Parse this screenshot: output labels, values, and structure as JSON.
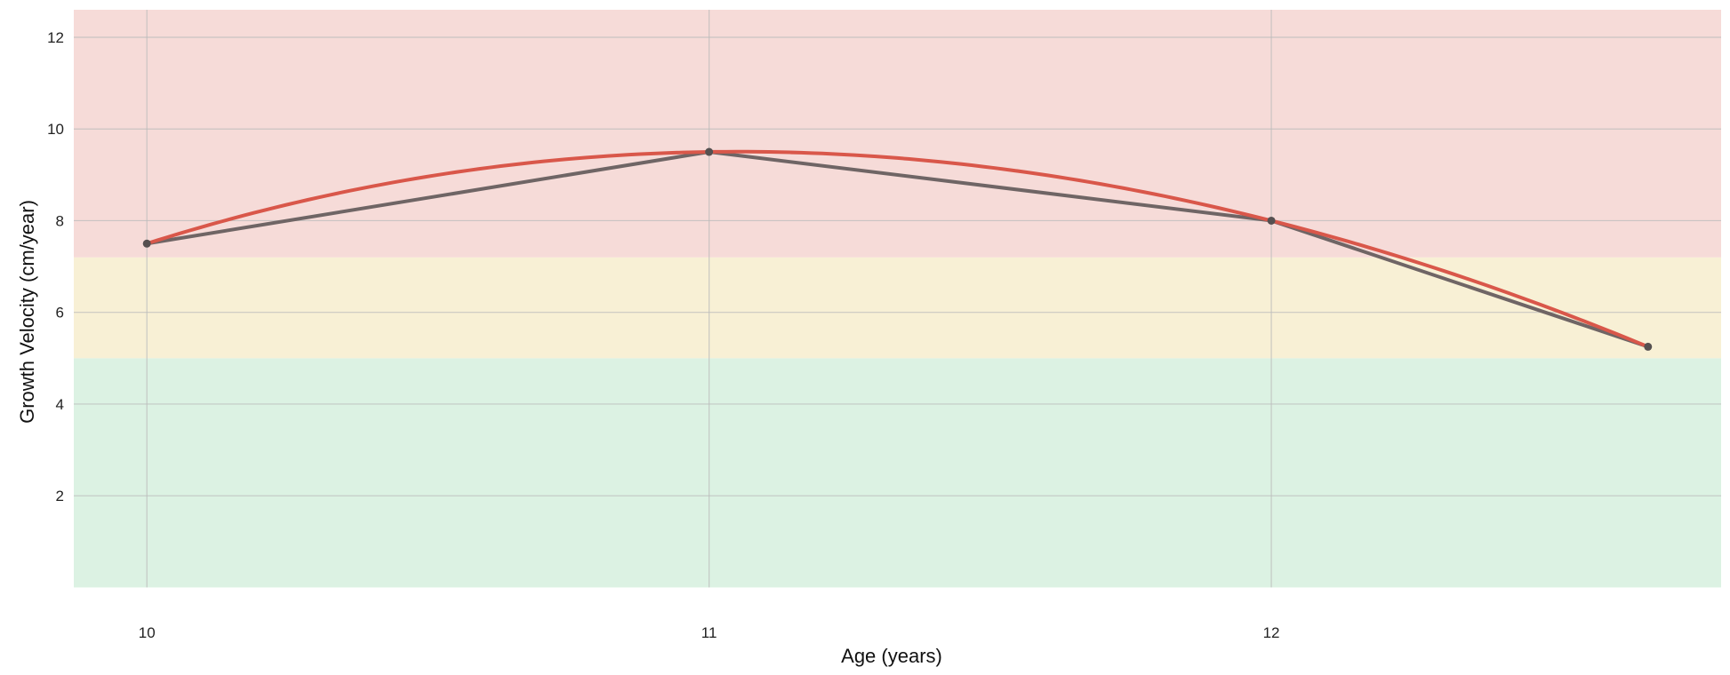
{
  "chart_data": {
    "type": "line",
    "title": "",
    "xlabel": "Age (years)",
    "ylabel": "Growth Velocity (cm/year)",
    "xlim": [
      9.87,
      12.8
    ],
    "ylim": [
      -0.05,
      12.6
    ],
    "x_ticks": [
      10,
      11,
      12
    ],
    "y_ticks": [
      2,
      4,
      6,
      8,
      10,
      12
    ],
    "grid": true,
    "bands": [
      {
        "from": 0,
        "to": 5.0,
        "color": "#dcf2e3"
      },
      {
        "from": 5.0,
        "to": 7.2,
        "color": "#f8f0d5"
      },
      {
        "from": 7.2,
        "to": 12.6,
        "color": "#f6dbd8"
      }
    ],
    "series": [
      {
        "kind": "observed",
        "color": "#6f6565",
        "x": [
          10,
          11,
          12,
          12.67
        ],
        "y": [
          7.5,
          9.5,
          8.0,
          5.25
        ]
      },
      {
        "kind": "fitted-curve",
        "color": "#d9574a",
        "x": [
          10,
          11,
          12,
          12.67
        ],
        "y": [
          7.5,
          9.5,
          8.0,
          5.25
        ]
      }
    ]
  }
}
